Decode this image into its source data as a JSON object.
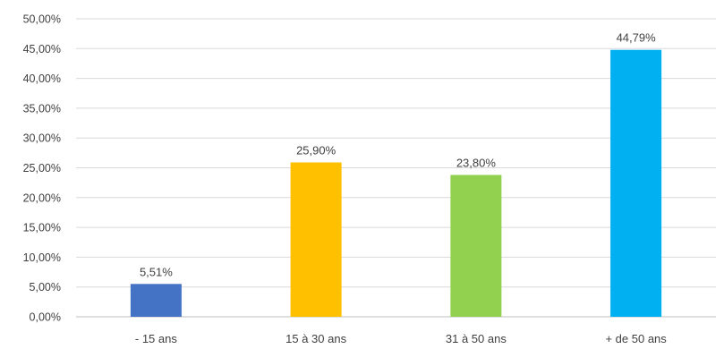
{
  "chart_data": {
    "type": "bar",
    "categories": [
      "- 15 ans",
      "15 à 30 ans",
      "31 à 50 ans",
      "+ de 50 ans"
    ],
    "values": [
      5.51,
      25.9,
      23.8,
      44.79
    ],
    "data_labels": [
      "5,51%",
      "25,90%",
      "23,80%",
      "44,79%"
    ],
    "colors": [
      "#4472c4",
      "#ffc000",
      "#92d050",
      "#00b0f0"
    ],
    "ylim": [
      0,
      50
    ],
    "yticks": [
      0,
      5,
      10,
      15,
      20,
      25,
      30,
      35,
      40,
      45,
      50
    ],
    "ytick_labels": [
      "0,00%",
      "5,00%",
      "10,00%",
      "15,00%",
      "20,00%",
      "25,00%",
      "30,00%",
      "35,00%",
      "40,00%",
      "45,00%",
      "50,00%"
    ],
    "grid": true,
    "legend": "none",
    "title": "",
    "xlabel": "",
    "ylabel": ""
  }
}
